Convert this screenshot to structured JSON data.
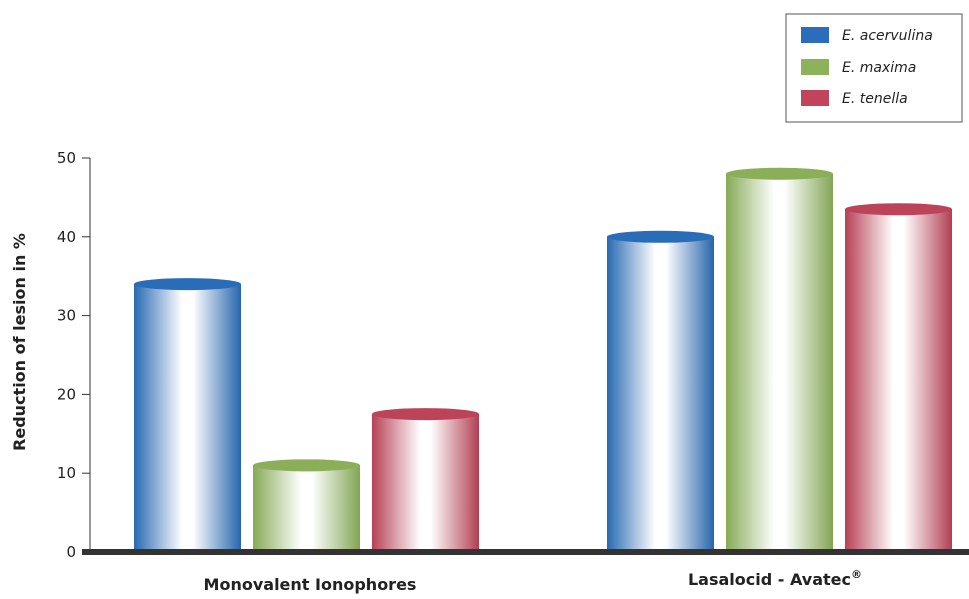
{
  "chart_data": {
    "type": "bar",
    "ylabel": "Reduction of lesion in %",
    "ylim": [
      0,
      50
    ],
    "yticks": [
      0,
      10,
      20,
      30,
      40,
      50
    ],
    "grid": false,
    "legend_position": "top-right",
    "categories": [
      "Monovalent Ionophores",
      "Lasalocid - Avatec"
    ],
    "category_superscripts": [
      "",
      "®"
    ],
    "series": [
      {
        "name": "E. acervulina",
        "values": [
          34,
          40
        ],
        "color": "#2a6ebb"
      },
      {
        "name": "E. maxima",
        "values": [
          11,
          48
        ],
        "color": "#8db35a"
      },
      {
        "name": "E. tenella",
        "values": [
          17.5,
          43.5
        ],
        "color": "#c0445a"
      }
    ]
  }
}
